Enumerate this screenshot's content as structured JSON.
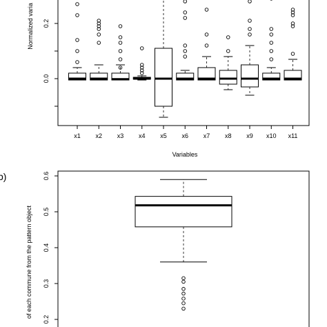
{
  "chart_data": [
    {
      "type": "boxplot",
      "title": "",
      "xlabel": "Variables",
      "ylabel": "Normalized varia",
      "ylim": [
        -0.17,
        0.3
      ],
      "yticks": [
        -0.1,
        0.0,
        0.1,
        0.2
      ],
      "ytick_labels": [
        "",
        "0.0",
        "",
        "0.2"
      ],
      "categories": [
        "x1",
        "x2",
        "x3",
        "x4",
        "x5",
        "x6",
        "x7",
        "x8",
        "x9",
        "x10",
        "x11"
      ],
      "boxes": [
        {
          "label": "x1",
          "whisker_low": -0.005,
          "q1": -0.005,
          "median": 0.0,
          "q3": 0.02,
          "whisker_high": 0.04,
          "outliers": [
            0.06,
            0.1,
            0.14,
            0.23,
            0.27
          ]
        },
        {
          "label": "x2",
          "whisker_low": -0.005,
          "q1": -0.005,
          "median": 0.0,
          "q3": 0.02,
          "whisker_high": 0.05,
          "outliers": [
            0.13,
            0.16,
            0.18,
            0.19,
            0.2,
            0.21
          ]
        },
        {
          "label": "x3",
          "whisker_low": -0.005,
          "q1": -0.005,
          "median": -0.002,
          "q3": 0.02,
          "whisker_high": 0.05,
          "outliers": [
            0.04,
            0.07,
            0.1,
            0.13,
            0.15,
            0.19
          ]
        },
        {
          "label": "x4",
          "whisker_low": -0.005,
          "q1": -0.002,
          "median": 0.0,
          "q3": 0.005,
          "whisker_high": 0.01,
          "outliers": [
            0.02,
            0.03,
            0.04,
            0.05,
            0.11
          ]
        },
        {
          "label": "x5",
          "whisker_low": -0.14,
          "q1": -0.1,
          "median": 0.0,
          "q3": 0.11,
          "whisker_high": 0.3,
          "outliers": []
        },
        {
          "label": "x6",
          "whisker_low": -0.005,
          "q1": -0.005,
          "median": 0.0,
          "q3": 0.02,
          "whisker_high": 0.03,
          "outliers": [
            0.08,
            0.1,
            0.12,
            0.22,
            0.24,
            0.28
          ]
        },
        {
          "label": "x7",
          "whisker_low": -0.005,
          "q1": -0.005,
          "median": 0.0,
          "q3": 0.04,
          "whisker_high": 0.08,
          "outliers": [
            0.12,
            0.16,
            0.25
          ]
        },
        {
          "label": "x8",
          "whisker_low": -0.04,
          "q1": -0.02,
          "median": 0.0,
          "q3": 0.03,
          "whisker_high": 0.08,
          "outliers": [
            0.1,
            0.15
          ]
        },
        {
          "label": "x9",
          "whisker_low": -0.06,
          "q1": -0.03,
          "median": 0.0,
          "q3": 0.05,
          "whisker_high": 0.12,
          "outliers": [
            0.16,
            0.18,
            0.21,
            0.28
          ]
        },
        {
          "label": "x10",
          "whisker_low": -0.005,
          "q1": -0.005,
          "median": 0.0,
          "q3": 0.02,
          "whisker_high": 0.04,
          "outliers": [
            0.07,
            0.1,
            0.13,
            0.16,
            0.18,
            0.29
          ]
        },
        {
          "label": "x11",
          "whisker_low": -0.005,
          "q1": -0.005,
          "median": 0.0,
          "q3": 0.03,
          "whisker_high": 0.07,
          "outliers": [
            0.09,
            0.19,
            0.2,
            0.23,
            0.24,
            0.25
          ]
        }
      ]
    },
    {
      "type": "boxplot",
      "panel": "b)",
      "title": "",
      "xlabel": "",
      "ylabel": "of each commune from the pattern object",
      "ylim": [
        0.19,
        0.61
      ],
      "yticks": [
        0.2,
        0.3,
        0.4,
        0.5,
        0.6
      ],
      "ytick_labels": [
        "0.2",
        "0.3",
        "0.4",
        "0.5",
        "0.6"
      ],
      "boxes": [
        {
          "label": "",
          "whisker_low": 0.36,
          "q1": 0.458,
          "median": 0.518,
          "q3": 0.543,
          "whisker_high": 0.59,
          "outliers": [
            0.23,
            0.245,
            0.258,
            0.272,
            0.285,
            0.305,
            0.315
          ]
        }
      ]
    }
  ]
}
